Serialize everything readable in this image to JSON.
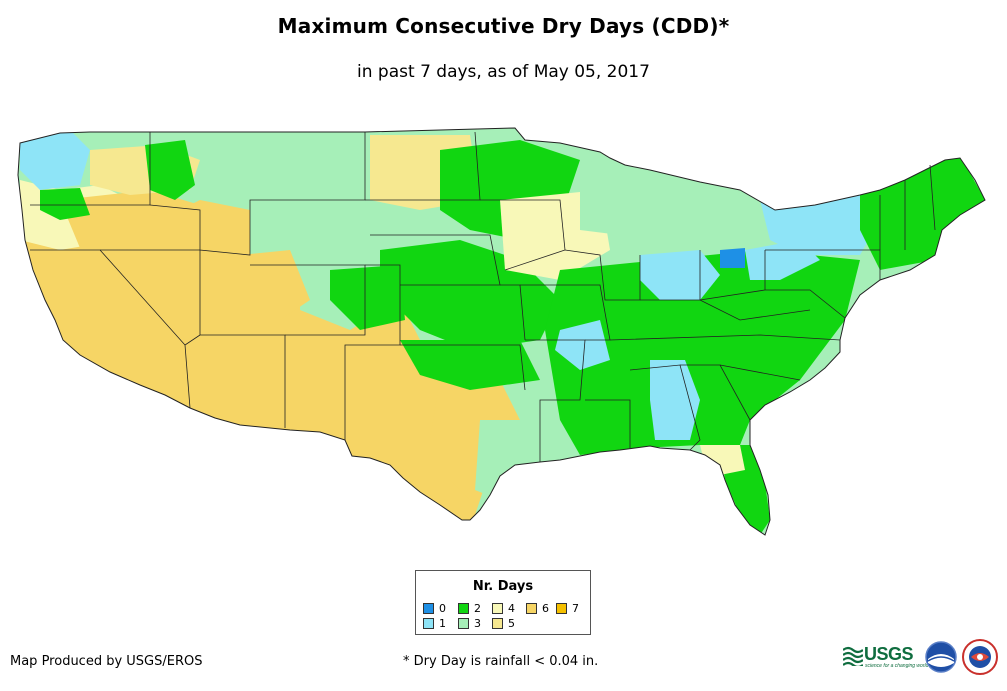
{
  "title": "Maximum Consecutive Dry Days (CDD)*",
  "subtitle": "in past 7 days, as of May 05, 2017",
  "legend": {
    "title": "Nr. Days",
    "items": [
      {
        "label": "0",
        "color": "#1e90e6"
      },
      {
        "label": "1",
        "color": "#8ee4f7"
      },
      {
        "label": "2",
        "color": "#11d611"
      },
      {
        "label": "3",
        "color": "#a6efb8"
      },
      {
        "label": "4",
        "color": "#f8f8b8"
      },
      {
        "label": "5",
        "color": "#f6e890"
      },
      {
        "label": "6",
        "color": "#f6d565"
      },
      {
        "label": "7",
        "color": "#f5c000"
      }
    ]
  },
  "footer": {
    "producer": "Map Produced by USGS/EROS",
    "note": "* Dry Day is rainfall < 0.04 in."
  },
  "logos": {
    "usgs": "USGS",
    "usgs_tagline": "science for a changing world",
    "noaa": "noaa",
    "nws": "NWS"
  }
}
